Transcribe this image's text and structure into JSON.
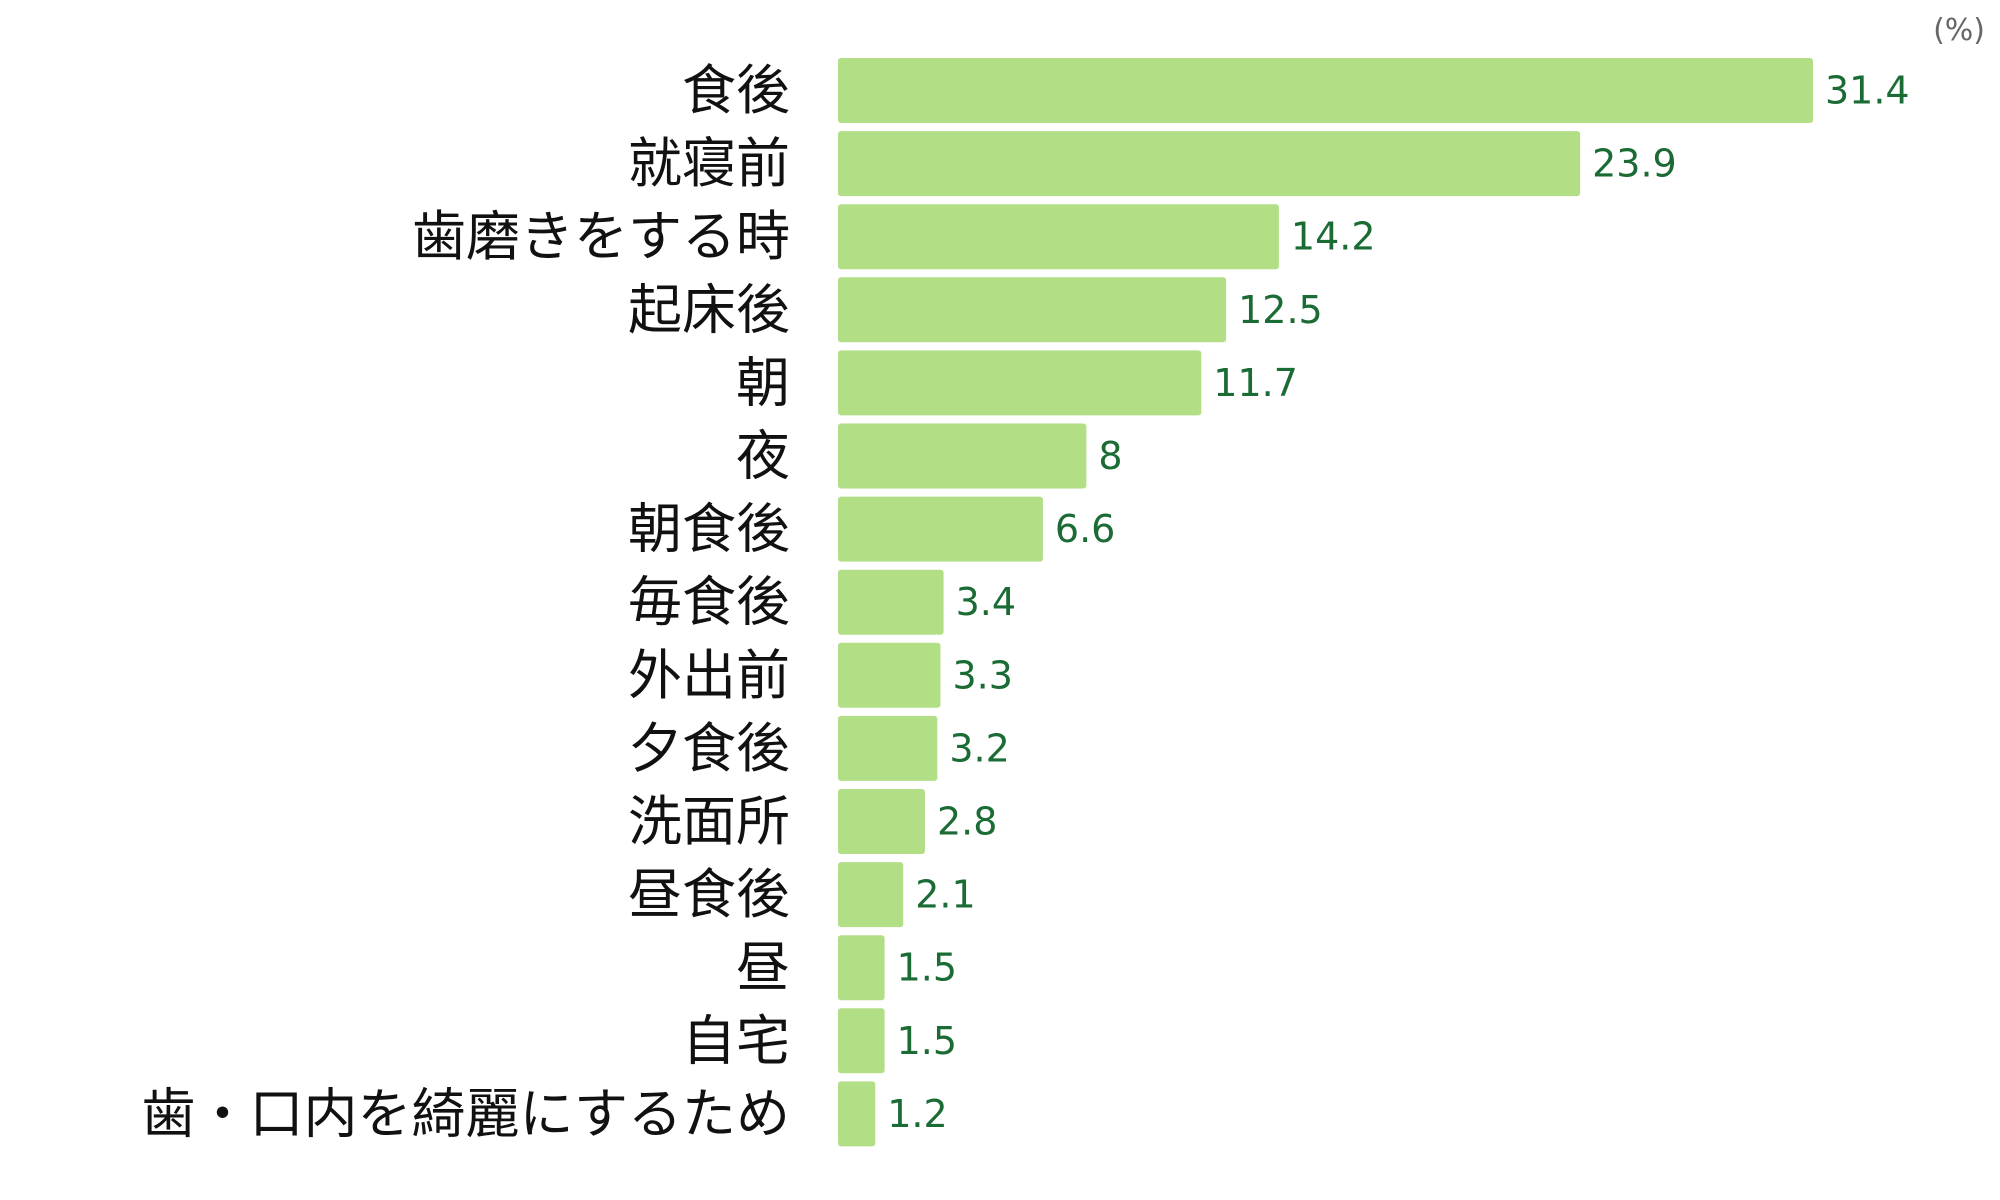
{
  "chart_data": {
    "type": "bar",
    "orientation": "horizontal",
    "unit": "(%)",
    "categories": [
      "食後",
      "就寝前",
      "歯磨きをする時",
      "起床後",
      "朝",
      "夜",
      "朝食後",
      "毎食後",
      "外出前",
      "夕食後",
      "洗面所",
      "昼食後",
      "昼",
      "自宅",
      "歯・口内を綺麗にするため"
    ],
    "values": [
      31.4,
      23.9,
      14.2,
      12.5,
      11.7,
      8,
      6.6,
      3.4,
      3.3,
      3.2,
      2.8,
      2.1,
      1.5,
      1.5,
      1.2
    ],
    "value_labels": [
      "31.4",
      "23.9",
      "14.2",
      "12.5",
      "11.7",
      "8",
      "6.6",
      "3.4",
      "3.3",
      "3.2",
      "2.8",
      "2.1",
      "1.5",
      "1.5",
      "1.2"
    ],
    "xlim": [
      0,
      31.4
    ],
    "grid": false,
    "legend": "none",
    "colors": {
      "bar": "#b2de86",
      "value_text": "#1a6b34",
      "category_text": "#111111",
      "unit_text": "#666666"
    }
  }
}
